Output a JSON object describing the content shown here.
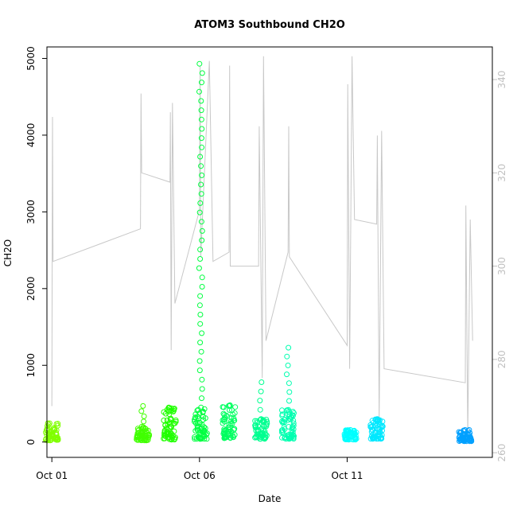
{
  "chart_data": {
    "type": "scatter",
    "title": "ATOM3 Southbound CH2O",
    "xlabel": "Date",
    "ylabel": "CH2O",
    "xlim": [
      "2017-09-30T20:00",
      "2017-10-15T22:00"
    ],
    "ylim": [
      -200,
      5150
    ],
    "y2lim": [
      259,
      347
    ],
    "x_ticks": [
      {
        "value": "2017-10-01",
        "label": "Oct 01"
      },
      {
        "value": "2017-10-06",
        "label": "Oct 06"
      },
      {
        "value": "2017-10-11",
        "label": "Oct 11"
      }
    ],
    "y_ticks": [
      0,
      1000,
      2000,
      3000,
      4000,
      5000
    ],
    "y2_ticks": [
      260,
      280,
      300,
      320,
      340
    ],
    "grid": false,
    "legend": "none",
    "colors": {
      "secondary_line": "#c8c8c8",
      "right_axis": "#c0c0c0",
      "axis": "#000000"
    },
    "scatter_clusters": [
      {
        "time": "2017-10-01T00:00",
        "low": 20,
        "high": 260,
        "max": 260,
        "color": "#80ff00"
      },
      {
        "time": "2017-10-04T02:00",
        "low": 20,
        "high": 200,
        "max": 470,
        "color": "#40ff00"
      },
      {
        "time": "2017-10-05T00:00",
        "low": 30,
        "high": 440,
        "max": 450,
        "color": "#20ff00"
      },
      {
        "time": "2017-10-06T01:00",
        "low": 40,
        "high": 450,
        "max": 4930,
        "color": "#00ff40"
      },
      {
        "time": "2017-10-07T00:00",
        "low": 40,
        "high": 470,
        "max": 480,
        "color": "#00ff60"
      },
      {
        "time": "2017-10-08T02:00",
        "low": 40,
        "high": 300,
        "max": 780,
        "color": "#00ff90"
      },
      {
        "time": "2017-10-09T00:00",
        "low": 40,
        "high": 420,
        "max": 1230,
        "color": "#00ffb0"
      },
      {
        "time": "2017-10-11T03:00",
        "low": 30,
        "high": 160,
        "max": 160,
        "color": "#00ffff"
      },
      {
        "time": "2017-10-12T00:00",
        "low": 40,
        "high": 290,
        "max": 300,
        "color": "#00e8ff"
      },
      {
        "time": "2017-10-15T00:00",
        "low": 10,
        "high": 160,
        "max": 160,
        "color": "#00a0ff"
      }
    ],
    "secondary_series": {
      "name": "",
      "axis": "right",
      "points": [
        [
          "2017-10-01T00:00",
          270
        ],
        [
          "2017-10-01T00:30",
          332
        ],
        [
          "2017-10-01T01:00",
          301
        ],
        [
          "2017-10-04T00:00",
          308
        ],
        [
          "2017-10-04T00:30",
          337
        ],
        [
          "2017-10-04T01:00",
          320
        ],
        [
          "2017-10-05T00:00",
          318
        ],
        [
          "2017-10-05T00:20",
          333
        ],
        [
          "2017-10-05T01:00",
          282
        ],
        [
          "2017-10-05T02:00",
          335
        ],
        [
          "2017-10-05T04:00",
          292
        ],
        [
          "2017-10-06T00:00",
          312
        ],
        [
          "2017-10-06T00:30",
          343
        ],
        [
          "2017-10-06T01:00",
          302
        ],
        [
          "2017-10-06T08:00",
          344
        ],
        [
          "2017-10-06T11:00",
          301
        ],
        [
          "2017-10-07T00:00",
          303
        ],
        [
          "2017-10-07T00:30",
          343
        ],
        [
          "2017-10-07T01:00",
          300
        ],
        [
          "2017-10-08T00:00",
          300
        ],
        [
          "2017-10-08T00:30",
          330
        ],
        [
          "2017-10-08T03:00",
          276
        ],
        [
          "2017-10-08T04:00",
          345
        ],
        [
          "2017-10-08T06:00",
          284
        ],
        [
          "2017-10-09T00:00",
          303
        ],
        [
          "2017-10-09T00:30",
          330
        ],
        [
          "2017-10-09T01:00",
          302
        ],
        [
          "2017-10-11T00:00",
          283
        ],
        [
          "2017-10-11T00:30",
          339
        ],
        [
          "2017-10-11T02:00",
          278
        ],
        [
          "2017-10-11T04:00",
          345
        ],
        [
          "2017-10-11T06:00",
          310
        ],
        [
          "2017-10-12T00:00",
          309
        ],
        [
          "2017-10-12T00:30",
          328
        ],
        [
          "2017-10-12T02:00",
          267
        ],
        [
          "2017-10-12T04:00",
          329
        ],
        [
          "2017-10-12T06:00",
          278
        ],
        [
          "2017-10-15T00:00",
          275
        ],
        [
          "2017-10-15T00:30",
          313
        ],
        [
          "2017-10-15T02:00",
          264
        ],
        [
          "2017-10-15T04:00",
          310
        ],
        [
          "2017-10-15T06:00",
          284
        ]
      ]
    }
  }
}
